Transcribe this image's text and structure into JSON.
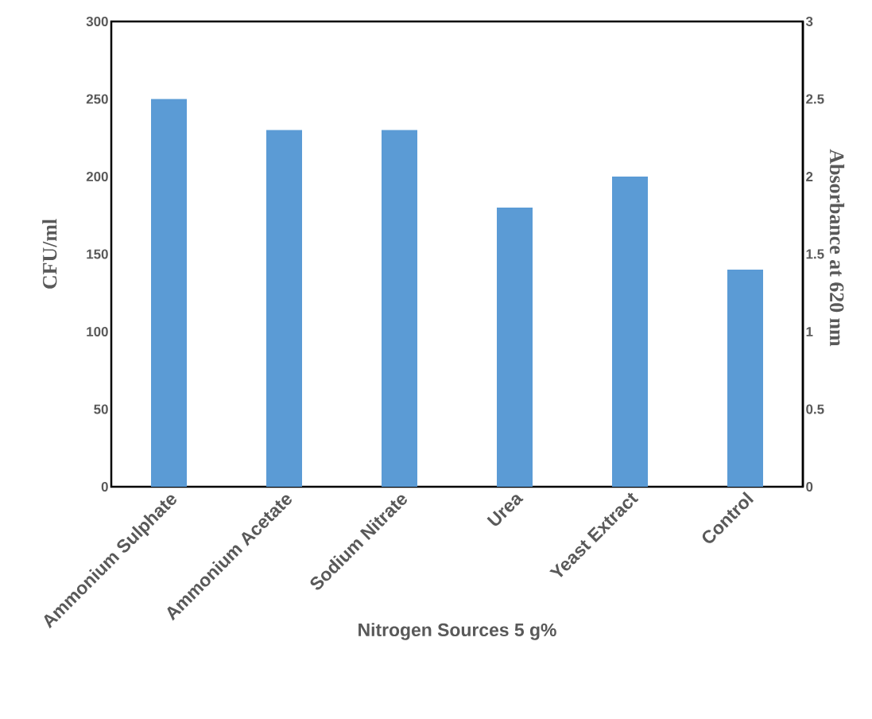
{
  "chart_data": {
    "type": "bar",
    "xlabel": "Nitrogen Sources 5 g%",
    "ylabel": "CFU/ml",
    "y2label": "Absorbance at 620 nm",
    "categories": [
      "Ammonium Sulphate",
      "Ammonium Acetate",
      "Sodium Nitrate",
      "Urea",
      "Yeast Extract",
      "Control"
    ],
    "values": [
      250,
      230,
      230,
      180,
      200,
      140
    ],
    "color": "#5b9bd5",
    "ylim": [
      0,
      300
    ],
    "yticks": [
      0,
      50,
      100,
      150,
      200,
      250,
      300
    ],
    "y2lim": [
      0,
      3
    ],
    "y2ticks": [
      0,
      0.5,
      1,
      1.5,
      2,
      2.5,
      3
    ],
    "grid": false
  }
}
